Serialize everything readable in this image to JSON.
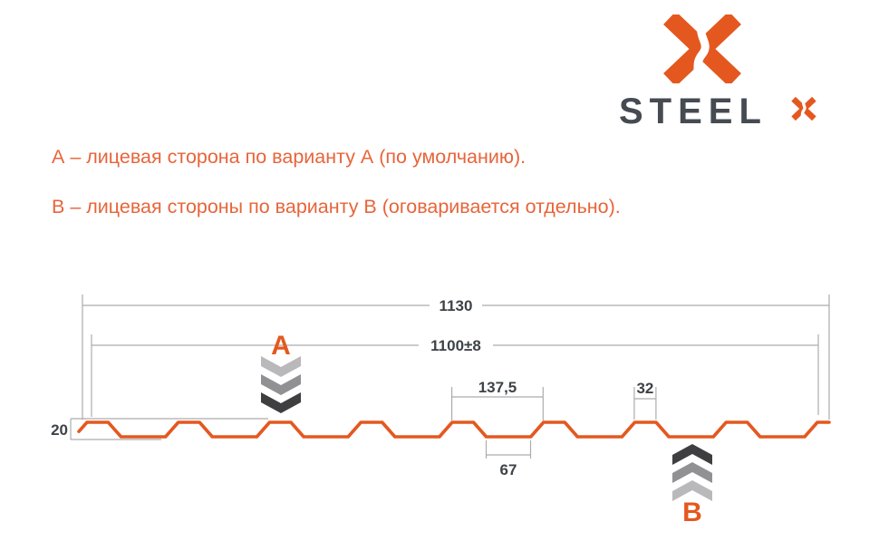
{
  "logo": {
    "brand": "STEEL",
    "mark_icon": "steelx-x-mark",
    "sup_icon": "x-mark-small"
  },
  "notes": {
    "line_a": "А – лицевая сторона по варианту А (по умолчанию).",
    "line_b": "В – лицевая стороны по варианту В (оговаривается отдельно)."
  },
  "markers": {
    "front_side": "А",
    "back_side": "В"
  },
  "dimensions": {
    "total_width": "1130",
    "cover_width": "1100±8",
    "rib_pitch": "137,5",
    "rib_crest": "32",
    "rib_valley": "67",
    "profile_height": "20"
  },
  "profile": {
    "total_mm": 1130,
    "pitch_mm": 137.5,
    "crest_mm": 32,
    "valley_mm": 67,
    "height_mm": 20
  },
  "colors": {
    "accent_orange": "#E4581F",
    "text_orange": "#E7653A",
    "dark_slate": "#42474D",
    "dim_gray": "#ACACAE",
    "chevron_light": "#B9B9BB",
    "chevron_mid": "#919194",
    "chevron_dark": "#3F3F41"
  }
}
